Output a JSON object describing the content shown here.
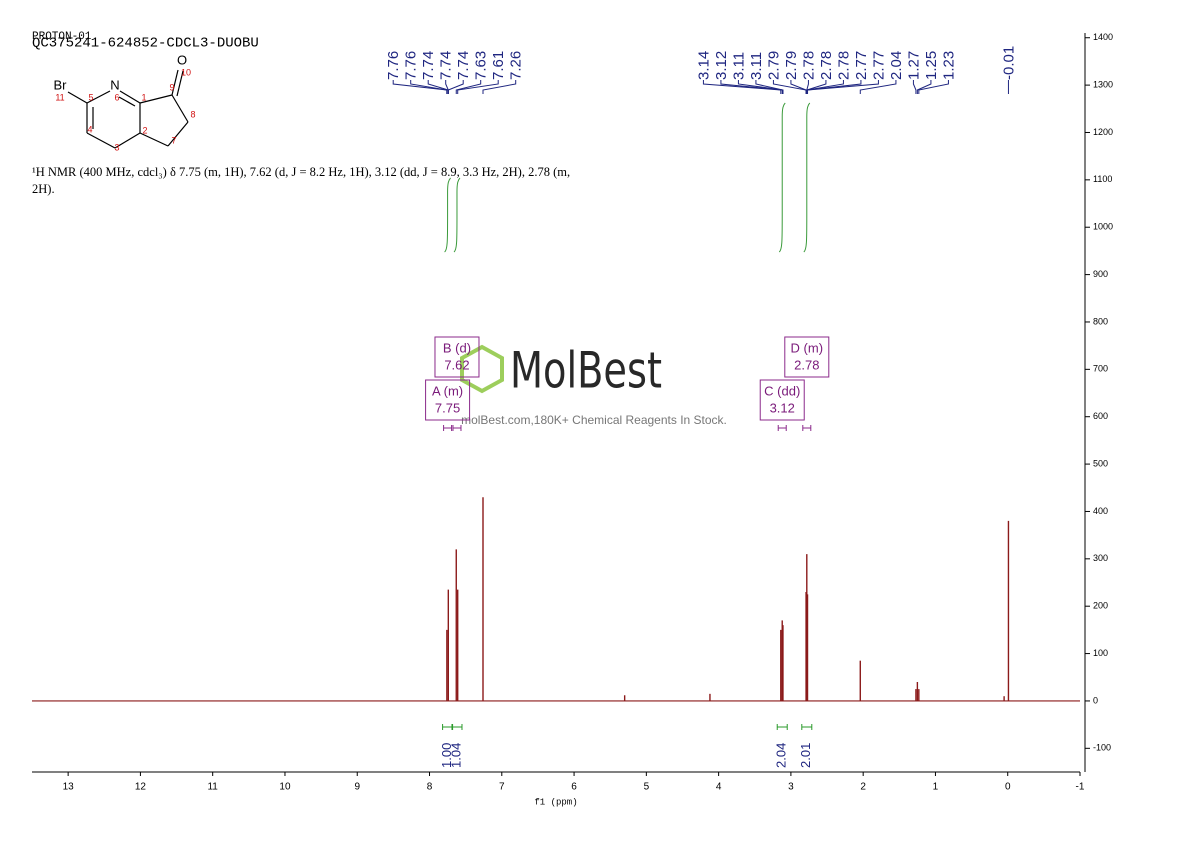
{
  "chart_data": {
    "type": "nmr",
    "header": {
      "lines": [
        "PROTON-01",
        "QC375241-624852-CDCL3-DUOBU"
      ]
    },
    "structure": {
      "atoms": [
        "Br",
        "N",
        "O"
      ],
      "numbers": [
        "11",
        "5",
        "6",
        "1",
        "9",
        "10",
        "8",
        "7",
        "2",
        "3",
        "4"
      ]
    },
    "description": "¹H NMR (400 MHz, cdcl₃) δ 7.75 (m, 1H), 7.62 (d, J = 8.2 Hz, 1H), 3.12 (dd, J = 8.9, 3.3 Hz, 2H), 2.78 (m, 2H).",
    "watermark": {
      "brand": "MolBest",
      "tagline": "molBest.com,180K+ Chemical Reagents In Stock."
    },
    "peak_labels": [
      7.76,
      7.76,
      7.74,
      7.74,
      7.74,
      7.63,
      7.61,
      7.26,
      3.14,
      3.12,
      3.11,
      3.11,
      2.79,
      2.79,
      2.78,
      2.78,
      2.78,
      2.77,
      2.77,
      2.04,
      1.27,
      1.25,
      1.23,
      -0.01
    ],
    "series": [
      {
        "name": "spectrum",
        "color": "#8b1a1a",
        "x": [
          7.76,
          7.74,
          7.63,
          7.61,
          7.26,
          5.3,
          4.12,
          3.14,
          3.12,
          3.11,
          2.79,
          2.78,
          2.77,
          2.04,
          1.27,
          1.25,
          1.23,
          0.05,
          -0.01
        ],
        "values": [
          150,
          235,
          320,
          235,
          430,
          12,
          15,
          150,
          170,
          160,
          230,
          310,
          225,
          85,
          25,
          40,
          25,
          10,
          380
        ]
      }
    ],
    "multiplets": [
      {
        "label": "A (m)",
        "shift": 7.75
      },
      {
        "label": "B (d)",
        "shift": 7.62
      },
      {
        "label": "C (dd)",
        "shift": 3.12
      },
      {
        "label": "D (m)",
        "shift": 2.78
      }
    ],
    "integrals": {
      "x": [
        7.75,
        7.62,
        3.12,
        2.78
      ],
      "values": [
        1.0,
        1.04,
        2.04,
        2.01
      ],
      "value_labels": [
        "1.00",
        "1.04",
        "2.04",
        "2.01"
      ]
    },
    "xlabel": "f1 (ppm)",
    "xlim": [
      13.5,
      -1
    ],
    "xticks": [
      13,
      12,
      11,
      10,
      9,
      8,
      7,
      6,
      5,
      4,
      3,
      2,
      1,
      0,
      -1
    ],
    "ylim": [
      -150,
      1410
    ],
    "yticks": [
      -100,
      0,
      100,
      200,
      300,
      400,
      500,
      600,
      700,
      800,
      900,
      1000,
      1100,
      1200,
      1300,
      1400
    ]
  }
}
